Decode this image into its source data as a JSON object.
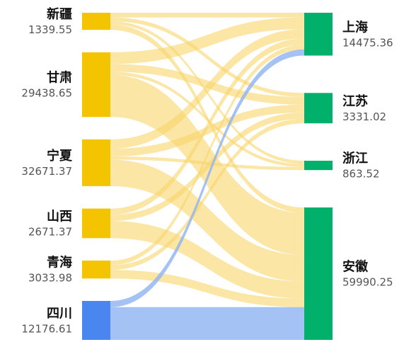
{
  "chart_data": {
    "type": "sankey",
    "nodes": [
      {
        "name": "新疆",
        "value": 1339.55,
        "color": "#f5c400"
      },
      {
        "name": "甘肃",
        "value": 29438.65,
        "color": "#f5c400"
      },
      {
        "name": "宁夏",
        "value": 32671.37,
        "color": "#f5c400"
      },
      {
        "name": "山西",
        "value": 2671.37,
        "color": "#f5c400"
      },
      {
        "name": "青海",
        "value": 3033.98,
        "color": "#f5c400"
      },
      {
        "name": "四川",
        "value": 12176.61,
        "color": "#4a86f0"
      },
      {
        "name": "上海",
        "value": 14475.36,
        "color": "#00b06b"
      },
      {
        "name": "江苏",
        "value": 3331.02,
        "color": "#00b06b"
      },
      {
        "name": "浙江",
        "value": 863.52,
        "color": "#00b06b"
      },
      {
        "name": "安徽",
        "value": 59990.25,
        "color": "#00b06b"
      }
    ],
    "links": [
      {
        "source": 0,
        "target": 6,
        "value": 6
      },
      {
        "source": 0,
        "target": 7,
        "value": 5
      },
      {
        "source": 0,
        "target": 8,
        "value": 4
      },
      {
        "source": 0,
        "target": 9,
        "value": 7
      },
      {
        "source": 1,
        "target": 6,
        "value": 15
      },
      {
        "source": 1,
        "target": 7,
        "value": 10
      },
      {
        "source": 1,
        "target": 8,
        "value": 4
      },
      {
        "source": 1,
        "target": 9,
        "value": 54
      },
      {
        "source": 2,
        "target": 6,
        "value": 12
      },
      {
        "source": 2,
        "target": 7,
        "value": 10
      },
      {
        "source": 2,
        "target": 8,
        "value": 4
      },
      {
        "source": 2,
        "target": 9,
        "value": 34
      },
      {
        "source": 3,
        "target": 6,
        "value": 8
      },
      {
        "source": 3,
        "target": 7,
        "value": 8
      },
      {
        "source": 3,
        "target": 9,
        "value": 22
      },
      {
        "source": 4,
        "target": 6,
        "value": 6
      },
      {
        "source": 4,
        "target": 7,
        "value": 6
      },
      {
        "source": 4,
        "target": 9,
        "value": 11
      },
      {
        "source": 5,
        "target": 6,
        "value": 8
      },
      {
        "source": 5,
        "target": 9,
        "value": 42
      }
    ]
  }
}
